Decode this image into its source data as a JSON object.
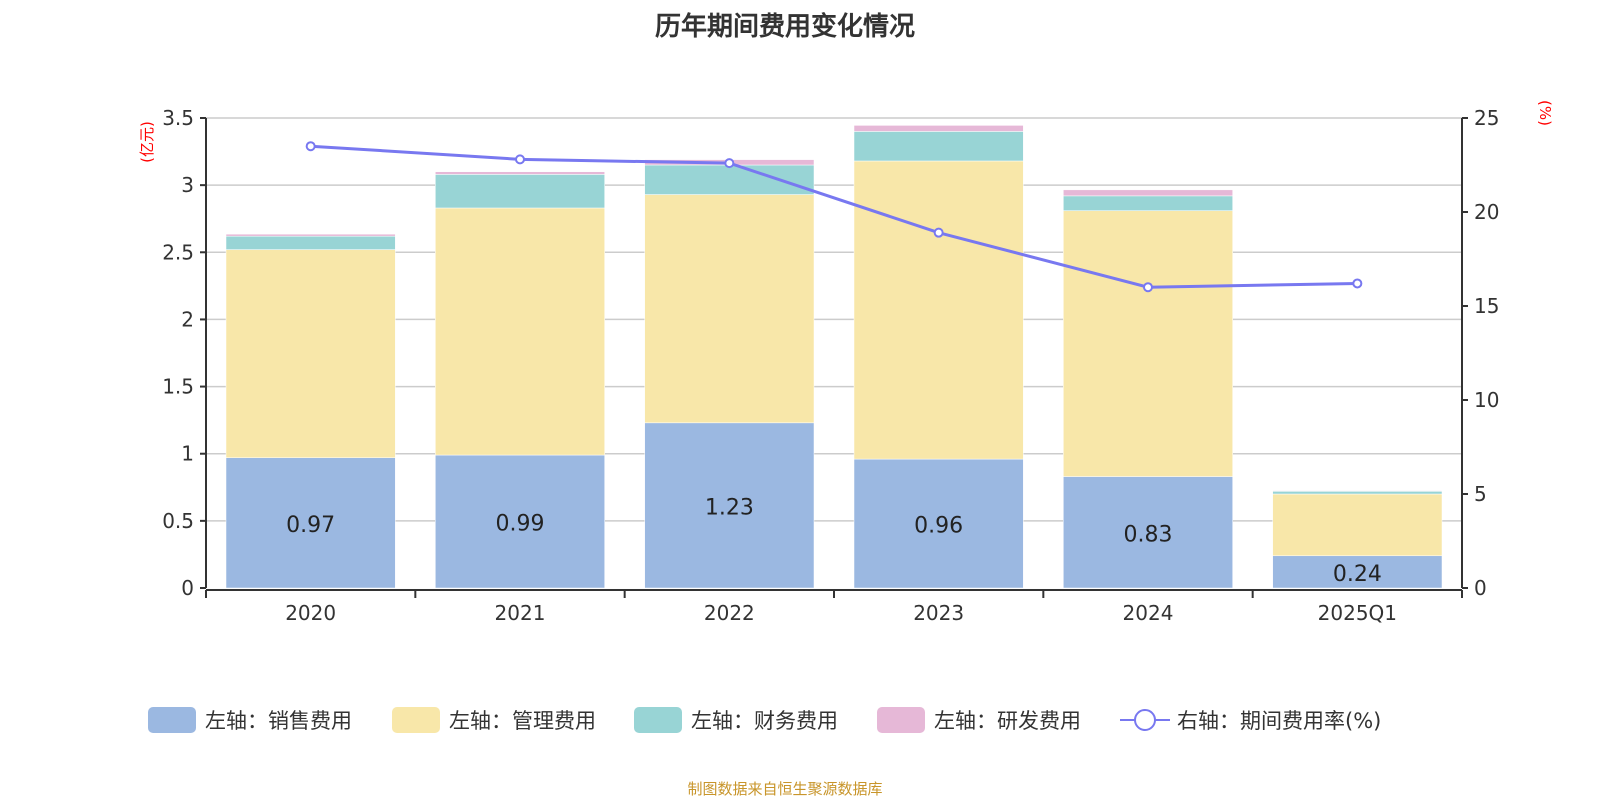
{
  "chart_data": {
    "type": "bar",
    "title": "历年期间费用变化情况",
    "categories": [
      "2020",
      "2021",
      "2022",
      "2023",
      "2024",
      "2025Q1"
    ],
    "left_axis": {
      "label": "(亿元)",
      "range": [
        0,
        3.5
      ],
      "ticks": [
        "0",
        "0.5",
        "1",
        "1.5",
        "2",
        "2.5",
        "3",
        "3.5"
      ]
    },
    "right_axis": {
      "label": "(%)",
      "range": [
        0,
        25
      ],
      "ticks": [
        "0",
        "5",
        "10",
        "15",
        "20",
        "25"
      ]
    },
    "grid": true,
    "legend_placement": "bottom",
    "series": [
      {
        "name": "左轴：销售费用",
        "type": "bar",
        "stack": true,
        "color": "#9bb8e1",
        "values": [
          0.97,
          0.99,
          1.23,
          0.96,
          0.83,
          0.24
        ],
        "data_labels": [
          "0.97",
          "0.99",
          "1.23",
          "0.96",
          "0.83",
          "0.24"
        ]
      },
      {
        "name": "左轴：管理费用",
        "type": "bar",
        "stack": true,
        "color": "#f8e7a9",
        "values": [
          1.55,
          1.84,
          1.7,
          2.22,
          1.98,
          0.46
        ]
      },
      {
        "name": "左轴：财务费用",
        "type": "bar",
        "stack": true,
        "color": "#98d4d5",
        "values": [
          0.1,
          0.25,
          0.22,
          0.22,
          0.11,
          0.02
        ]
      },
      {
        "name": "左轴：研发费用",
        "type": "bar",
        "stack": true,
        "color": "#e6b8d7",
        "values": [
          0.015,
          0.02,
          0.04,
          0.045,
          0.045,
          0.005
        ]
      },
      {
        "name": "右轴：期间费用率(%)",
        "type": "line",
        "axis": "right",
        "color": "#7878f0",
        "values": [
          23.5,
          22.8,
          22.6,
          18.9,
          16.0,
          16.2
        ]
      }
    ]
  },
  "source": "制图数据来自恒生聚源数据库"
}
